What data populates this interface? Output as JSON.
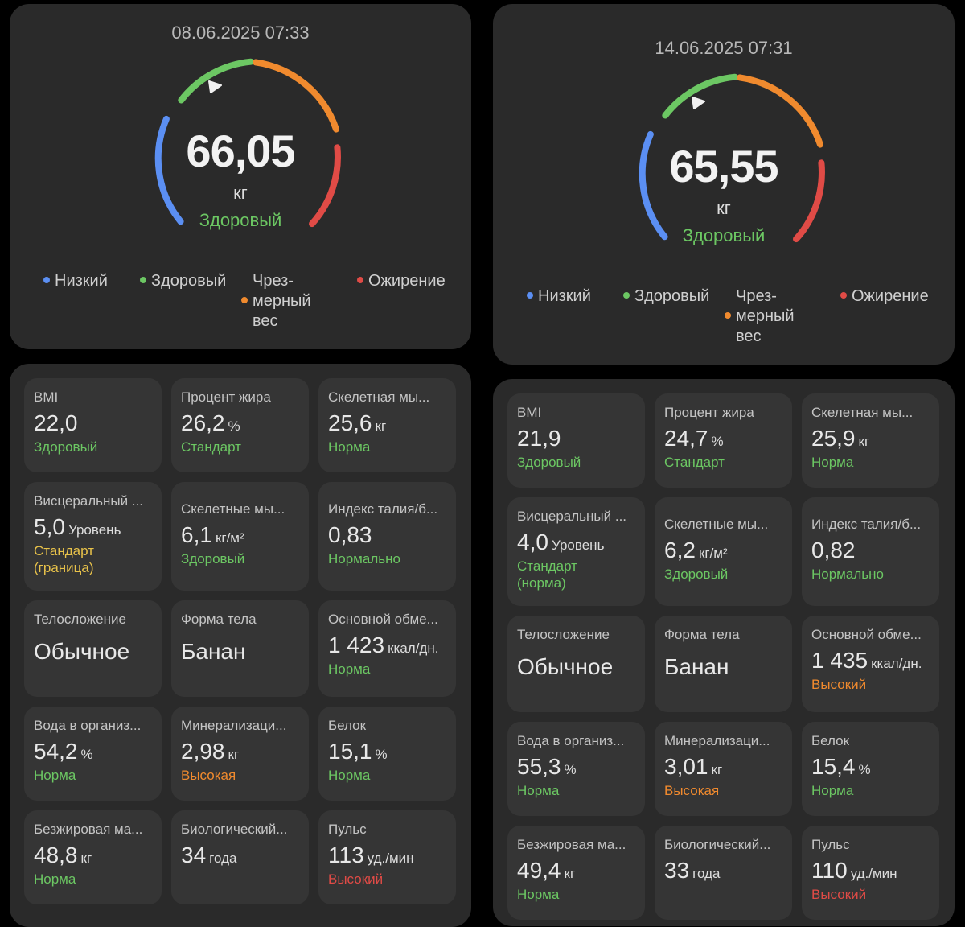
{
  "colors": {
    "low": "#5b8ff3",
    "healthy": "#6cc763",
    "overweight": "#f08a2e",
    "obese": "#e04b46",
    "marker": "#f0f0f0"
  },
  "legend": {
    "low": "Низкий",
    "healthy": "Здоровый",
    "over1": "Чрез-",
    "over2": "мерный",
    "over3": "вес",
    "obese": "Ожирение"
  },
  "left": {
    "date": "08.06.2025 07:33",
    "weight": "66,05",
    "unit": "кг",
    "status": "Здоровый",
    "tiles": [
      {
        "label": "BMI",
        "value": "22,0",
        "unit": "",
        "status": "Здоровый",
        "color": "green"
      },
      {
        "label": "Процент жира",
        "value": "26,2",
        "unit": "%",
        "status": "Стандарт",
        "color": "green"
      },
      {
        "label": "Скелетная мы...",
        "value": "25,6",
        "unit": "кг",
        "status": "Норма",
        "color": "green"
      },
      {
        "label": "Висцеральный ...",
        "value": "5,0",
        "unit": "Уровень",
        "status": "Стандарт",
        "status2": "(граница)",
        "color": "yellow"
      },
      {
        "label": "Скелетные мы...",
        "value": "6,1",
        "unit": "кг/м²",
        "status": "Здоровый",
        "color": "green"
      },
      {
        "label": "Индекс талия/б...",
        "value": "0,83",
        "unit": "",
        "status": "Нормально",
        "color": "green"
      },
      {
        "label": "Телосложение",
        "value": "Обычное",
        "unit": "",
        "status": "",
        "color": "green"
      },
      {
        "label": "Форма тела",
        "value": "Банан",
        "unit": "",
        "status": "",
        "color": "green"
      },
      {
        "label": "Основной обме...",
        "value": "1 423",
        "unit": "ккал/дн.",
        "status": "Норма",
        "color": "green"
      },
      {
        "label": "Вода в организ...",
        "value": "54,2",
        "unit": "%",
        "status": "Норма",
        "color": "green"
      },
      {
        "label": "Минерализаци...",
        "value": "2,98",
        "unit": "кг",
        "status": "Высокая",
        "color": "orange"
      },
      {
        "label": "Белок",
        "value": "15,1",
        "unit": "%",
        "status": "Норма",
        "color": "green"
      },
      {
        "label": "Безжировая ма...",
        "value": "48,8",
        "unit": "кг",
        "status": "Норма",
        "color": "green"
      },
      {
        "label": "Биологический...",
        "value": "34",
        "unit": "года",
        "status": "",
        "color": "green"
      },
      {
        "label": "Пульс",
        "value": "113",
        "unit": "уд./мин",
        "status": "Высокий",
        "color": "red"
      }
    ]
  },
  "right": {
    "date": "14.06.2025 07:31",
    "weight": "65,55",
    "unit": "кг",
    "status": "Здоровый",
    "tiles": [
      {
        "label": "BMI",
        "value": "21,9",
        "unit": "",
        "status": "Здоровый",
        "color": "green"
      },
      {
        "label": "Процент жира",
        "value": "24,7",
        "unit": "%",
        "status": "Стандарт",
        "color": "green"
      },
      {
        "label": "Скелетная мы...",
        "value": "25,9",
        "unit": "кг",
        "status": "Норма",
        "color": "green"
      },
      {
        "label": "Висцеральный ...",
        "value": "4,0",
        "unit": "Уровень",
        "status": "Стандарт",
        "status2": "(норма)",
        "color": "green"
      },
      {
        "label": "Скелетные мы...",
        "value": "6,2",
        "unit": "кг/м²",
        "status": "Здоровый",
        "color": "green"
      },
      {
        "label": "Индекс талия/б...",
        "value": "0,82",
        "unit": "",
        "status": "Нормально",
        "color": "green"
      },
      {
        "label": "Телосложение",
        "value": "Обычное",
        "unit": "",
        "status": "",
        "color": "green"
      },
      {
        "label": "Форма тела",
        "value": "Банан",
        "unit": "",
        "status": "",
        "color": "green"
      },
      {
        "label": "Основной обме...",
        "value": "1 435",
        "unit": "ккал/дн.",
        "status": "Высокий",
        "color": "orange"
      },
      {
        "label": "Вода в организ...",
        "value": "55,3",
        "unit": "%",
        "status": "Норма",
        "color": "green"
      },
      {
        "label": "Минерализаци...",
        "value": "3,01",
        "unit": "кг",
        "status": "Высокая",
        "color": "orange"
      },
      {
        "label": "Белок",
        "value": "15,4",
        "unit": "%",
        "status": "Норма",
        "color": "green"
      },
      {
        "label": "Безжировая ма...",
        "value": "49,4",
        "unit": "кг",
        "status": "Норма",
        "color": "green"
      },
      {
        "label": "Биологический...",
        "value": "33",
        "unit": "года",
        "status": "",
        "color": "green"
      },
      {
        "label": "Пульс",
        "value": "110",
        "unit": "уд./мин",
        "status": "Высокий",
        "color": "red"
      }
    ]
  }
}
